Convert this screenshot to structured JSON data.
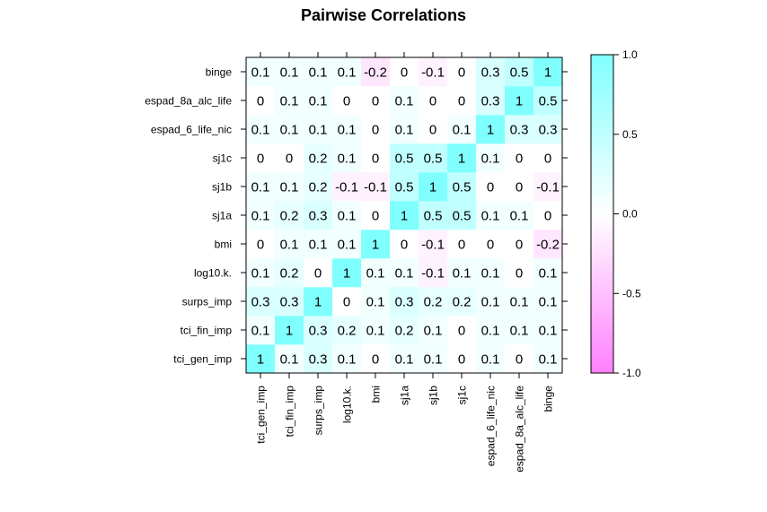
{
  "chart_data": {
    "type": "heatmap",
    "title": "Pairwise Correlations",
    "variables": [
      "tci_gen_imp",
      "tci_fin_imp",
      "surps_imp",
      "log10.k.",
      "bmi",
      "sj1a",
      "sj1b",
      "sj1c",
      "espad_6_life_nic",
      "espad_8a_alc_life",
      "binge"
    ],
    "matrix": [
      [
        1,
        0.1,
        0.3,
        0.1,
        0,
        0.1,
        0.1,
        0,
        0.1,
        0,
        0.1
      ],
      [
        0.1,
        1,
        0.3,
        0.2,
        0.1,
        0.2,
        0.1,
        0,
        0.1,
        0.1,
        0.1
      ],
      [
        0.3,
        0.3,
        1,
        0,
        0.1,
        0.3,
        0.2,
        0.2,
        0.1,
        0.1,
        0.1
      ],
      [
        0.1,
        0.2,
        0,
        1,
        0.1,
        0.1,
        -0.1,
        0.1,
        0.1,
        0,
        0.1
      ],
      [
        0,
        0.1,
        0.1,
        0.1,
        1,
        0,
        -0.1,
        0,
        0,
        0,
        -0.2
      ],
      [
        0.1,
        0.2,
        0.3,
        0.1,
        0,
        1,
        0.5,
        0.5,
        0.1,
        0.1,
        0
      ],
      [
        0.1,
        0.1,
        0.2,
        -0.1,
        -0.1,
        0.5,
        1,
        0.5,
        0,
        0,
        -0.1
      ],
      [
        0,
        0,
        0.2,
        0.1,
        0,
        0.5,
        0.5,
        1,
        0.1,
        0,
        0
      ],
      [
        0.1,
        0.1,
        0.1,
        0.1,
        0,
        0.1,
        0,
        0.1,
        1,
        0.3,
        0.3
      ],
      [
        0,
        0.1,
        0.1,
        0,
        0,
        0.1,
        0,
        0,
        0.3,
        1,
        0.5
      ],
      [
        0.1,
        0.1,
        0.1,
        0.1,
        -0.2,
        0,
        -0.1,
        0,
        0.3,
        0.5,
        1
      ]
    ],
    "color_scale": {
      "min": -1.0,
      "max": 1.0,
      "low_color": "#ff80ff",
      "mid_color": "#ffffff",
      "high_color": "#80ffff",
      "ticks": [
        "1.0",
        "0.5",
        "0.0",
        "-0.5",
        "-1.0"
      ],
      "tick_values": [
        1.0,
        0.5,
        0.0,
        -0.5,
        -1.0
      ]
    }
  }
}
